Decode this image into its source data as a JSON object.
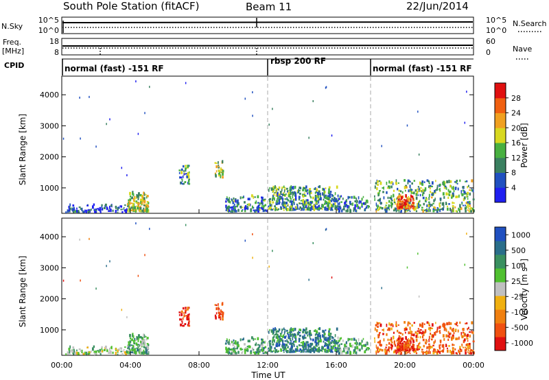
{
  "header": {
    "station": "South Pole Station (fitACF)",
    "beam": "Beam 11",
    "date": "22/Jun/2014"
  },
  "panels": {
    "nsky_label": "N.Sky",
    "nsky_ticks": [
      "10^5",
      "10^0"
    ],
    "nsearch_label": "N.Search",
    "nsearch_ticks": [
      "10^5",
      "10^0"
    ],
    "freq_label": "Freq.",
    "freq_unit": "[MHz]",
    "freq_ticks": [
      "18",
      "8"
    ],
    "nave_label": "Nave",
    "nave_ticks": [
      "60",
      "0"
    ],
    "cpid_label": "CPID",
    "cpid_segments": [
      "normal (fast) -151 RF",
      "rbsp 200 RF",
      "normal (fast) -151 RF"
    ]
  },
  "colors": {
    "power_scale": [
      "#1f1ff0",
      "#2050c0",
      "#3a8060",
      "#48b040",
      "#d8d820",
      "#f0a020",
      "#f06010",
      "#e01010"
    ],
    "velocity_scale": [
      "#e01010",
      "#f05010",
      "#f08010",
      "#f0b010",
      "#c0c0c0",
      "#50c030",
      "#3a9060",
      "#2a6e8a",
      "#2050c0"
    ]
  },
  "chart_data": {
    "type": "heatmap",
    "x_label": "Time UT",
    "x_ticks": [
      "00:00",
      "04:00",
      "08:00",
      "12:00",
      "16:00",
      "20:00",
      "00:00"
    ],
    "y_label": "Slant Range [km]",
    "y_ticks": [
      "1000",
      "2000",
      "3000",
      "4000"
    ],
    "ylim": [
      180,
      4600
    ],
    "xlim": [
      0,
      24
    ],
    "mode_boundaries_hours": [
      12,
      18
    ],
    "power_colorbar": {
      "label": "Power [dB]",
      "ticks": [
        "4",
        "8",
        "12",
        "16",
        "20",
        "24",
        "28"
      ]
    },
    "velocity_colorbar": {
      "label": "Velocity [m s",
      "label_sup": "-1",
      "label_close": "]",
      "ticks": [
        "1000",
        "500",
        "100",
        "25",
        "-25",
        "-100",
        "-500",
        "-1000"
      ]
    }
  }
}
